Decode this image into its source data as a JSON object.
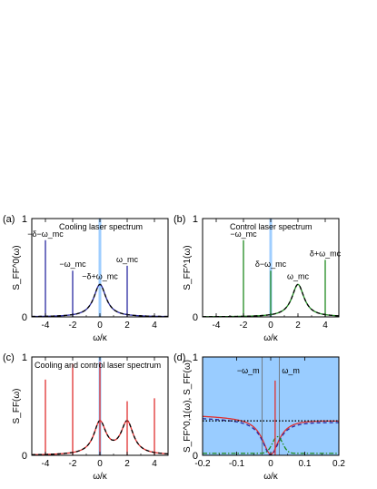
{
  "chart_data": [
    {
      "type": "line",
      "panel_label": "(a)",
      "ylabel": "S_FF^0(ω)",
      "xlabel": "ω/κ",
      "title": "Cooling laser spectrum",
      "xlim": [
        -5,
        5
      ],
      "ylim": [
        0,
        1
      ],
      "x_ticks": [
        -4,
        -2,
        0,
        2,
        4
      ],
      "y_ticks": [
        0,
        1
      ],
      "shaded_band": [
        -0.1,
        0.1
      ],
      "spikes": [
        {
          "x": -4.0,
          "y": 0.78,
          "color": "#2a2aa0",
          "label": "−δ−ω_mc"
        },
        {
          "x": -2.0,
          "y": 0.47,
          "color": "#2a2aa0",
          "label": "−ω_mc"
        },
        {
          "x": 2.0,
          "y": 0.52,
          "color": "#2a2aa0",
          "label": "ω_mc"
        }
      ],
      "peak_label": "−δ+ω_mc",
      "series": [
        {
          "style": "solid",
          "color": "#2a2aa0",
          "lorentzian": {
            "center": 0,
            "amp": 0.33,
            "gamma": 0.55,
            "base": 0.0
          }
        },
        {
          "style": "dashed",
          "color": "#000000",
          "lorentzian": {
            "center": 0,
            "amp": 0.33,
            "gamma": 0.55,
            "base": 0.0
          }
        }
      ]
    },
    {
      "type": "line",
      "panel_label": "(b)",
      "ylabel": "S_FF^1(ω)",
      "xlabel": "ω/κ",
      "title": "Control laser spectrum",
      "xlim": [
        -5,
        5
      ],
      "ylim": [
        0,
        1
      ],
      "x_ticks": [
        -4,
        -2,
        0,
        2,
        4
      ],
      "y_ticks": [
        0,
        1
      ],
      "shaded_band": [
        -0.1,
        0.1
      ],
      "spikes": [
        {
          "x": -2.0,
          "y": 0.78,
          "color": "#1f8a1f",
          "label": "−ω_mc"
        },
        {
          "x": 0.0,
          "y": 0.47,
          "color": "#1f8a1f",
          "label": "δ−ω_mc"
        },
        {
          "x": 4.0,
          "y": 0.58,
          "color": "#1f8a1f",
          "label": "δ+ω_mc"
        }
      ],
      "peak_label": "ω_mc",
      "series": [
        {
          "style": "solid",
          "color": "#1f8a1f",
          "lorentzian": {
            "center": 2,
            "amp": 0.33,
            "gamma": 0.55,
            "base": 0.0
          }
        },
        {
          "style": "dashed",
          "color": "#000000",
          "lorentzian": {
            "center": 2,
            "amp": 0.33,
            "gamma": 0.55,
            "base": 0.0
          }
        }
      ]
    },
    {
      "type": "line",
      "panel_label": "(c)",
      "ylabel": "S_FF(ω)",
      "xlabel": "ω/κ",
      "title": "Cooling and control laser spectrum",
      "xlim": [
        -5,
        5
      ],
      "ylim": [
        0,
        1
      ],
      "x_ticks": [
        -4,
        -2,
        0,
        2,
        4
      ],
      "y_ticks": [
        0,
        1
      ],
      "shaded_band": [
        -0.1,
        0.1
      ],
      "spikes": [
        {
          "x": -4.0,
          "y": 0.77,
          "color": "#e03030",
          "label": ""
        },
        {
          "x": -2.0,
          "y": 0.93,
          "color": "#e03030",
          "label": ""
        },
        {
          "x": 0.0,
          "y": 0.95,
          "color": "#e03030",
          "label": ""
        },
        {
          "x": 2.0,
          "y": 0.55,
          "color": "#e03030",
          "label": ""
        },
        {
          "x": 4.0,
          "y": 0.58,
          "color": "#e03030",
          "label": ""
        }
      ],
      "peak_label": "",
      "series": [
        {
          "style": "solid",
          "color": "#e03030",
          "lorentzians": [
            {
              "center": 0,
              "amp": 0.33,
              "gamma": 0.55
            },
            {
              "center": 2,
              "amp": 0.33,
              "gamma": 0.55
            }
          ]
        },
        {
          "style": "dashed",
          "color": "#000000",
          "lorentzians": [
            {
              "center": 0,
              "amp": 0.33,
              "gamma": 0.55
            },
            {
              "center": 2,
              "amp": 0.33,
              "gamma": 0.55
            }
          ]
        }
      ]
    },
    {
      "type": "line",
      "panel_label": "(d)",
      "ylabel": "S_FF^0,1(ω), S_FF(ω)",
      "xlabel": "ω/κ",
      "title": "",
      "xlim": [
        -0.2,
        0.2
      ],
      "ylim": [
        0,
        1
      ],
      "x_ticks": [
        -0.2,
        -0.1,
        0,
        0.1,
        0.2
      ],
      "y_ticks": [
        0,
        1
      ],
      "background": "#99ccff",
      "vlines": [
        {
          "x": -0.025,
          "label": "−ω_m"
        },
        {
          "x": 0.025,
          "label": "ω_m"
        }
      ],
      "spikes": [
        {
          "x": 0.013,
          "y": 0.76,
          "color": "#e03030",
          "label": ""
        }
      ],
      "series": [
        {
          "style": "solid",
          "color": "#e03030",
          "name": "",
          "dip": {
            "base": 0.38,
            "depth": 0.37,
            "width": 0.03,
            "tilt": -0.12
          }
        },
        {
          "style": "dashed",
          "color": "#2a2aa0",
          "dip": {
            "base": 0.36,
            "depth": 0.36,
            "width": 0.03,
            "tilt": -0.1
          }
        },
        {
          "style": "dotted",
          "color": "#000000",
          "flat": 0.35
        },
        {
          "style": "dashdot",
          "color": "#1f8a1f",
          "hump": {
            "base": 0.02,
            "amp": 0.17,
            "center": 0.02,
            "width": 0.015
          }
        }
      ]
    }
  ]
}
